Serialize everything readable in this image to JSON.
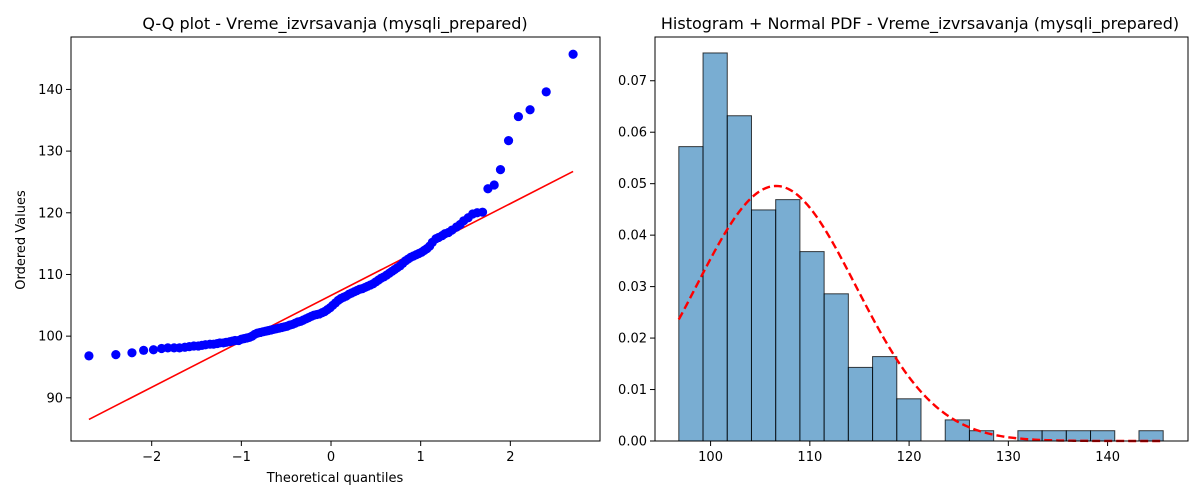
{
  "chart_data": [
    {
      "type": "scatter",
      "title": "Q-Q plot - Vreme_izvrsavanja (mysqli_prepared)",
      "xlabel": "Theoretical quantiles",
      "ylabel": "Ordered Values",
      "xlim": [
        -2.9,
        3.0
      ],
      "ylim": [
        83,
        148.5
      ],
      "xticks": [
        -2,
        -1,
        0,
        1,
        2
      ],
      "xtick_labels": [
        "−2",
        "−1",
        "0",
        "1",
        "2"
      ],
      "yticks": [
        90,
        100,
        110,
        120,
        130,
        140
      ],
      "ytick_labels": [
        "90",
        "100",
        "110",
        "120",
        "130",
        "140"
      ],
      "grid": false,
      "marker_color": "#0000ff",
      "line_color": "#ff0000",
      "fit_line": {
        "x": [
          -2.7,
          2.7
        ],
        "y": [
          86.5,
          126.7
        ]
      },
      "points": [
        [
          -2.7,
          96.8
        ],
        [
          -2.4,
          97.0
        ],
        [
          -2.22,
          97.3
        ],
        [
          -2.09,
          97.7
        ],
        [
          -1.98,
          97.8
        ],
        [
          -1.89,
          98.0
        ],
        [
          -1.82,
          98.1
        ],
        [
          -1.75,
          98.1
        ],
        [
          -1.69,
          98.1
        ],
        [
          -1.63,
          98.2
        ],
        [
          -1.58,
          98.3
        ],
        [
          -1.53,
          98.4
        ],
        [
          -1.48,
          98.4
        ],
        [
          -1.44,
          98.5
        ],
        [
          -1.4,
          98.6
        ],
        [
          -1.35,
          98.7
        ],
        [
          -1.31,
          98.7
        ],
        [
          -1.27,
          98.8
        ],
        [
          -1.24,
          98.9
        ],
        [
          -1.2,
          98.9
        ],
        [
          -1.17,
          99.0
        ],
        [
          -1.13,
          99.1
        ],
        [
          -1.1,
          99.2
        ],
        [
          -1.07,
          99.3
        ],
        [
          -1.03,
          99.3
        ],
        [
          -1.0,
          99.5
        ],
        [
          -0.97,
          99.6
        ],
        [
          -0.94,
          99.7
        ],
        [
          -0.91,
          99.8
        ],
        [
          -0.88,
          100.0
        ],
        [
          -0.85,
          100.3
        ],
        [
          -0.82,
          100.5
        ],
        [
          -0.79,
          100.6
        ],
        [
          -0.76,
          100.7
        ],
        [
          -0.73,
          100.8
        ],
        [
          -0.7,
          100.9
        ],
        [
          -0.67,
          101.0
        ],
        [
          -0.64,
          101.1
        ],
        [
          -0.61,
          101.2
        ],
        [
          -0.58,
          101.3
        ],
        [
          -0.55,
          101.4
        ],
        [
          -0.52,
          101.5
        ],
        [
          -0.49,
          101.6
        ],
        [
          -0.46,
          101.8
        ],
        [
          -0.43,
          101.9
        ],
        [
          -0.4,
          102.1
        ],
        [
          -0.37,
          102.3
        ],
        [
          -0.34,
          102.4
        ],
        [
          -0.31,
          102.6
        ],
        [
          -0.28,
          102.8
        ],
        [
          -0.25,
          103.0
        ],
        [
          -0.22,
          103.2
        ],
        [
          -0.19,
          103.4
        ],
        [
          -0.16,
          103.5
        ],
        [
          -0.13,
          103.6
        ],
        [
          -0.1,
          103.8
        ],
        [
          -0.07,
          104.0
        ],
        [
          -0.04,
          104.3
        ],
        [
          -0.01,
          104.6
        ],
        [
          0.02,
          105.0
        ],
        [
          0.05,
          105.4
        ],
        [
          0.08,
          105.8
        ],
        [
          0.11,
          106.1
        ],
        [
          0.14,
          106.3
        ],
        [
          0.17,
          106.5
        ],
        [
          0.2,
          106.8
        ],
        [
          0.23,
          107.0
        ],
        [
          0.26,
          107.2
        ],
        [
          0.29,
          107.4
        ],
        [
          0.32,
          107.6
        ],
        [
          0.35,
          107.7
        ],
        [
          0.38,
          107.9
        ],
        [
          0.41,
          108.1
        ],
        [
          0.44,
          108.3
        ],
        [
          0.47,
          108.5
        ],
        [
          0.5,
          108.8
        ],
        [
          0.53,
          109.1
        ],
        [
          0.56,
          109.4
        ],
        [
          0.59,
          109.6
        ],
        [
          0.62,
          109.9
        ],
        [
          0.65,
          110.2
        ],
        [
          0.68,
          110.5
        ],
        [
          0.71,
          110.8
        ],
        [
          0.74,
          111.1
        ],
        [
          0.77,
          111.4
        ],
        [
          0.8,
          111.8
        ],
        [
          0.83,
          112.2
        ],
        [
          0.86,
          112.5
        ],
        [
          0.89,
          112.8
        ],
        [
          0.92,
          113.0
        ],
        [
          0.95,
          113.2
        ],
        [
          0.98,
          113.4
        ],
        [
          1.01,
          113.6
        ],
        [
          1.04,
          113.9
        ],
        [
          1.07,
          114.2
        ],
        [
          1.1,
          114.6
        ],
        [
          1.13,
          115.2
        ],
        [
          1.17,
          115.8
        ],
        [
          1.2,
          116.0
        ],
        [
          1.24,
          116.3
        ],
        [
          1.27,
          116.6
        ],
        [
          1.31,
          116.8
        ],
        [
          1.35,
          117.2
        ],
        [
          1.4,
          117.7
        ],
        [
          1.44,
          118.1
        ],
        [
          1.48,
          118.7
        ],
        [
          1.53,
          119.2
        ],
        [
          1.58,
          119.8
        ],
        [
          1.63,
          120.0
        ],
        [
          1.69,
          120.1
        ],
        [
          1.75,
          123.9
        ],
        [
          1.82,
          124.5
        ],
        [
          1.89,
          127.0
        ],
        [
          1.98,
          131.7
        ],
        [
          2.09,
          135.6
        ],
        [
          2.22,
          136.7
        ],
        [
          2.4,
          139.6
        ],
        [
          2.7,
          145.7
        ]
      ]
    },
    {
      "type": "bar",
      "title": "Histogram + Normal PDF - Vreme_izvrsavanja (mysqli_prepared)",
      "xlabel": "",
      "ylabel": "",
      "xlim": [
        94.4,
        148.1
      ],
      "ylim": [
        0,
        0.0785
      ],
      "xticks": [
        100,
        110,
        120,
        130,
        140
      ],
      "xtick_labels": [
        "100",
        "110",
        "120",
        "130",
        "140"
      ],
      "yticks": [
        0.0,
        0.01,
        0.02,
        0.03,
        0.04,
        0.05,
        0.06,
        0.07
      ],
      "ytick_labels": [
        "0.00",
        "0.01",
        "0.02",
        "0.03",
        "0.04",
        "0.05",
        "0.06",
        "0.07"
      ],
      "grid": false,
      "bar_color": "#1f77b4",
      "curve_color": "#ff0000",
      "bin_edges": [
        96.8,
        99.24,
        101.68,
        104.12,
        106.56,
        109.0,
        111.44,
        113.88,
        116.32,
        118.76,
        121.2,
        123.64,
        126.08,
        128.52,
        130.96,
        133.4,
        135.84,
        138.28,
        140.72,
        143.16,
        145.6
      ],
      "densities": [
        0.0572,
        0.0754,
        0.0632,
        0.0449,
        0.0469,
        0.0368,
        0.0286,
        0.0143,
        0.0164,
        0.0082,
        0.0,
        0.0041,
        0.002,
        0.0,
        0.002,
        0.002,
        0.002,
        0.002,
        0.0,
        0.002
      ],
      "pdf_mean": 106.6,
      "pdf_std": 8.05
    }
  ]
}
